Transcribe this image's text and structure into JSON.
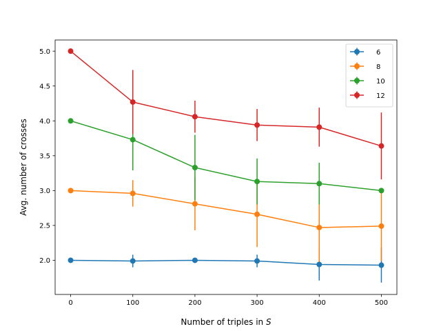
{
  "chart_data": {
    "type": "line",
    "x": [
      0,
      100,
      200,
      300,
      400,
      500
    ],
    "xlabel": "Number of triples in ",
    "xlabel_italic": "S",
    "ylabel": "Avg. number of crosses",
    "xlim": [
      -25,
      525
    ],
    "ylim": [
      1.51,
      5.16
    ],
    "xticks": [
      0,
      100,
      200,
      300,
      400,
      500
    ],
    "xtick_labels": [
      "0",
      "100",
      "200",
      "300",
      "400",
      "500"
    ],
    "yticks": [
      2.0,
      2.5,
      3.0,
      3.5,
      4.0,
      4.5,
      5.0
    ],
    "ytick_labels": [
      "2.0",
      "2.5",
      "3.0",
      "3.5",
      "4.0",
      "4.5",
      "5.0"
    ],
    "grid": false,
    "legend_position": "top-right",
    "series": [
      {
        "name": "6",
        "color": "#1f77b4",
        "values": [
          2.0,
          1.99,
          2.0,
          1.99,
          1.94,
          1.93
        ],
        "errors": [
          0.0,
          0.09,
          0.0,
          0.09,
          0.23,
          0.25
        ]
      },
      {
        "name": "8",
        "color": "#ff7f0e",
        "values": [
          3.0,
          2.96,
          2.81,
          2.66,
          2.47,
          2.49
        ],
        "errors": [
          0.0,
          0.19,
          0.38,
          0.47,
          0.49,
          0.5
        ]
      },
      {
        "name": "10",
        "color": "#2ca02c",
        "values": [
          4.0,
          3.73,
          3.33,
          3.13,
          3.1,
          3.0
        ],
        "errors": [
          0.0,
          0.44,
          0.47,
          0.33,
          0.3,
          0.0
        ]
      },
      {
        "name": "12",
        "color": "#d62728",
        "values": [
          5.0,
          4.27,
          4.06,
          3.94,
          3.91,
          3.64
        ],
        "errors": [
          0.0,
          0.46,
          0.23,
          0.23,
          0.28,
          0.48
        ]
      }
    ]
  }
}
